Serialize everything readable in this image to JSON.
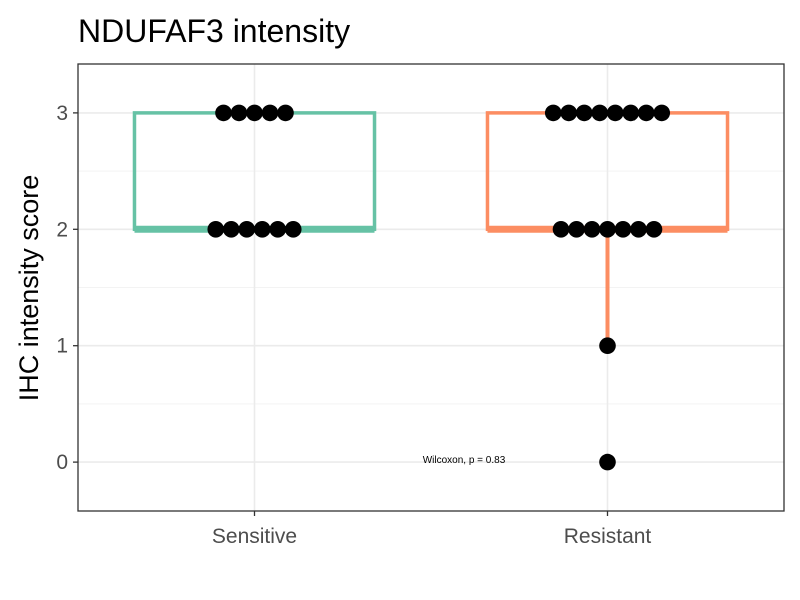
{
  "chart_data": {
    "type": "boxplot",
    "title": "NDUFAF3 intensity",
    "xlabel": "",
    "ylabel": "IHC intensity score",
    "categories": [
      "Sensitive",
      "Resistant"
    ],
    "yticks": [
      0,
      1,
      2,
      3
    ],
    "ylim": [
      -0.42,
      3.42
    ],
    "grid": true,
    "legend": "none",
    "annotation": "Wilcoxon, p = 0.83",
    "series": [
      {
        "category": "Sensitive",
        "color": "#66c2a5",
        "box": {
          "min": 2,
          "q1": 2,
          "median": 2,
          "q3": 3,
          "max": 3
        },
        "points": [
          {
            "y": 3,
            "count": 5
          },
          {
            "y": 2,
            "count": 6
          }
        ]
      },
      {
        "category": "Resistant",
        "color": "#fc8d62",
        "box": {
          "min": 1,
          "q1": 2,
          "median": 2,
          "q3": 3,
          "max": 3
        },
        "points": [
          {
            "y": 3,
            "count": 8
          },
          {
            "y": 2,
            "count": 7
          },
          {
            "y": 1,
            "count": 1
          },
          {
            "y": 0,
            "count": 1
          }
        ]
      }
    ]
  }
}
